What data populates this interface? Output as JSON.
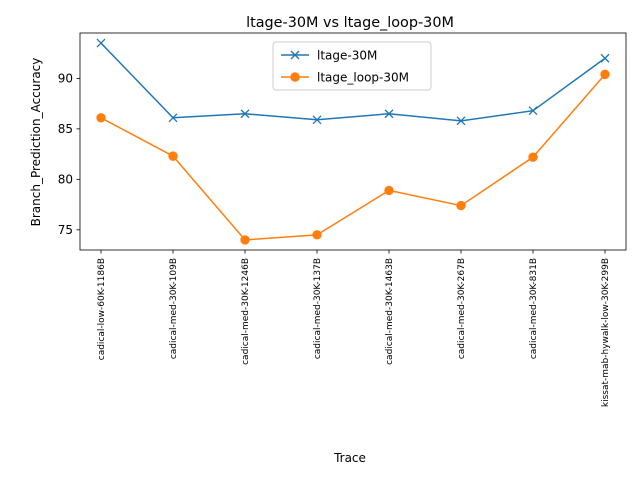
{
  "chart_data": {
    "type": "line",
    "title": "ltage-30M vs ltage_loop-30M",
    "xlabel": "Trace",
    "ylabel": "Branch_Prediction_Accuracy",
    "categories": [
      "cadical-low-60K-1186B",
      "cadical-med-30K-109B",
      "cadical-med-30K-1246B",
      "cadical-med-30K-137B",
      "cadical-med-30K-1463B",
      "cadical-med-30K-267B",
      "cadical-med-30K-831B",
      "kissat-mab-hywalk-low-30K-299B"
    ],
    "series": [
      {
        "name": "ltage-30M",
        "color": "#1f77b4",
        "marker": "x",
        "values": [
          93.5,
          86.1,
          86.5,
          85.9,
          86.5,
          85.8,
          86.8,
          92.0
        ]
      },
      {
        "name": "ltage_loop-30M",
        "color": "#ff7f0e",
        "marker": "o",
        "values": [
          86.1,
          82.3,
          74.0,
          74.5,
          78.9,
          77.4,
          82.2,
          90.4
        ]
      }
    ],
    "ylim": [
      73.0,
      94.5
    ],
    "yticks": [
      75,
      80,
      85,
      90
    ],
    "grid": false,
    "legend_position": "upper center"
  }
}
